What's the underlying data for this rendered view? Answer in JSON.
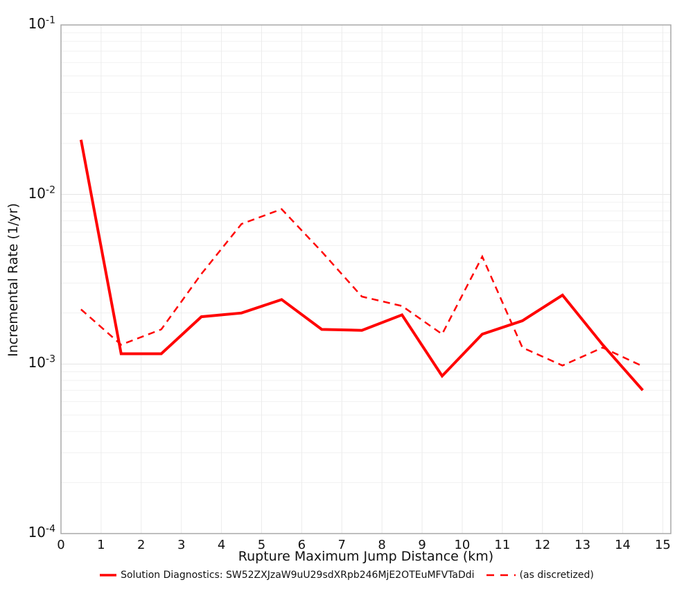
{
  "chart_data": {
    "type": "line",
    "title": "",
    "xlabel": "Rupture Maximum Jump Distance (km)",
    "ylabel": "Incremental Rate (1/yr)",
    "grid": true,
    "legend_position": "bottom-center",
    "xlim": [
      0,
      15.2
    ],
    "ylog_exponent_range": [
      -4,
      -1
    ],
    "x_ticks": [
      {
        "value": 0,
        "label": "0"
      },
      {
        "value": 1,
        "label": "1"
      },
      {
        "value": 2,
        "label": "2"
      },
      {
        "value": 3,
        "label": "3"
      },
      {
        "value": 4,
        "label": "4"
      },
      {
        "value": 5,
        "label": "5"
      },
      {
        "value": 6,
        "label": "6"
      },
      {
        "value": 7,
        "label": "7"
      },
      {
        "value": 8,
        "label": "8"
      },
      {
        "value": 9,
        "label": "9"
      },
      {
        "value": 10,
        "label": "10"
      },
      {
        "value": 11,
        "label": "11"
      },
      {
        "value": 12,
        "label": "12"
      },
      {
        "value": 13,
        "label": "13"
      },
      {
        "value": 14,
        "label": "14"
      },
      {
        "value": 15,
        "label": "15"
      }
    ],
    "y_tick_base": "10",
    "y_ticks": [
      {
        "exp": -1,
        "label": "-1"
      },
      {
        "exp": -2,
        "label": "-2"
      },
      {
        "exp": -3,
        "label": "-3"
      },
      {
        "exp": -4,
        "label": "-4"
      }
    ],
    "x": [
      0.5,
      1.5,
      2.5,
      3.5,
      4.5,
      5.5,
      6.5,
      7.5,
      8.5,
      9.5,
      10.5,
      11.5,
      12.5,
      13.5,
      14.5
    ],
    "series": [
      {
        "name": "Solution Diagnostics: SW52ZXJzaW9uU29sdXRpb246MjE2OTEuMFVTaDdi",
        "style": "solid",
        "color": "#ff0000",
        "line_width": 4,
        "values": [
          0.021,
          0.00115,
          0.00115,
          0.0019,
          0.002,
          0.0024,
          0.0016,
          0.00158,
          0.00195,
          0.00085,
          0.0015,
          0.0018,
          0.00255,
          0.0013,
          0.0007
        ]
      },
      {
        "name": "(as discretized)",
        "style": "dashed",
        "color": "#ff0000",
        "line_width": 2.5,
        "values": [
          0.0021,
          0.0013,
          0.0016,
          0.0034,
          0.0067,
          0.0082,
          0.0046,
          0.0025,
          0.0022,
          0.0015,
          0.0043,
          0.00125,
          0.00098,
          0.00125,
          0.00097
        ]
      }
    ],
    "colors": {
      "line_red": "#ff0000",
      "plot_border": "#a8a8a8",
      "grid_major": "#e3e3e3",
      "grid_minor": "#f1f1f1",
      "grid_vertical": "#ececec",
      "text": "#111111",
      "background": "#ffffff"
    }
  },
  "legend": {
    "series1_label": "Solution Diagnostics: SW52ZXJzaW9uU29sdXRpb246MjE2OTEuMFVTaDdi",
    "series2_label": "(as discretized)"
  }
}
